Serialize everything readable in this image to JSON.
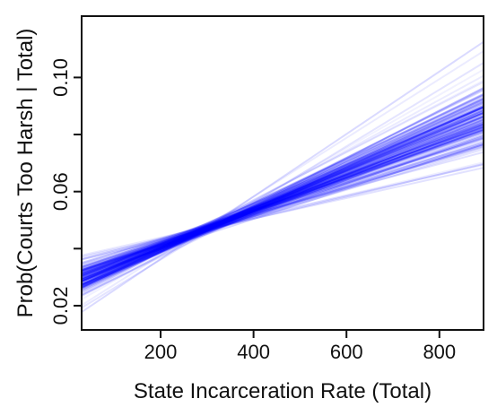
{
  "chart_data": {
    "type": "line",
    "title": "",
    "xlabel": "State Incarceration Rate (Total)",
    "ylabel": "Prob(Courts Too Harsh | Total)",
    "xlim": [
      30,
      895
    ],
    "ylim": [
      0.0115,
      0.1215
    ],
    "x_ticks": [
      200,
      400,
      600,
      800
    ],
    "x_tick_labels": [
      "200",
      "400",
      "600",
      "800"
    ],
    "y_ticks": [
      0.02,
      0.04,
      0.06,
      0.08,
      0.1
    ],
    "y_tick_labels": [
      "0.02",
      "",
      "0.06",
      "",
      "0.10"
    ],
    "grid": false,
    "legend": "none",
    "line_color": "#0000ff",
    "simulation_draws": 150,
    "pivot_x": 300,
    "pivot_y": 0.047,
    "mean_line": {
      "x": [
        30,
        895
      ],
      "y": [
        0.0275,
        0.0845
      ]
    },
    "band_at_x_min": [
      0.0215,
      0.0335
    ],
    "band_at_x_max": [
      0.064,
      0.106
    ]
  }
}
